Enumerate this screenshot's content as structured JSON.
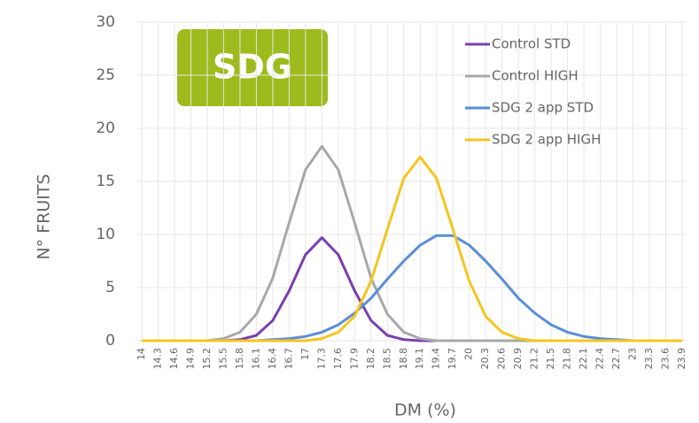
{
  "chart_data": {
    "type": "line",
    "badge": "SDG",
    "xlabel": "DM (%)",
    "ylabel": "N° FRUITS",
    "categories": [
      "14",
      "14.3",
      "14.6",
      "14.9",
      "15.2",
      "15.5",
      "15.8",
      "16.1",
      "16.4",
      "16.7",
      "17",
      "17.3",
      "17.6",
      "17.9",
      "18.2",
      "18.5",
      "18.8",
      "19.1",
      "19.4",
      "19.7",
      "20",
      "20.3",
      "20.6",
      "20.9",
      "21.2",
      "21.5",
      "21.8",
      "22.1",
      "22.4",
      "22.7",
      "23",
      "23.3",
      "23.6",
      "23.9"
    ],
    "series": [
      {
        "name": "Control STD",
        "color": "#7a3fb0",
        "values": [
          0,
          0,
          0,
          0,
          0,
          0,
          0.1,
          0.5,
          1.9,
          4.7,
          8.1,
          9.7,
          8.1,
          4.7,
          1.9,
          0.5,
          0.1,
          0,
          0,
          0,
          0,
          0,
          0,
          0,
          0,
          0,
          0,
          0,
          0,
          0,
          0,
          0,
          0,
          0
        ]
      },
      {
        "name": "Control HIGH",
        "color": "#a8a8a8",
        "values": [
          0,
          0,
          0,
          0,
          0,
          0.2,
          0.8,
          2.5,
          5.9,
          11.1,
          16.1,
          18.3,
          16.1,
          11.1,
          5.9,
          2.5,
          0.8,
          0.2,
          0,
          0,
          0,
          0,
          0,
          0,
          0,
          0,
          0,
          0,
          0,
          0,
          0,
          0,
          0,
          0
        ]
      },
      {
        "name": "SDG 2 app STD",
        "color": "#5b8ed6",
        "values": [
          0,
          0,
          0,
          0,
          0,
          0,
          0,
          0,
          0.1,
          0.2,
          0.4,
          0.8,
          1.5,
          2.6,
          4.0,
          5.8,
          7.5,
          9.0,
          9.9,
          9.9,
          9.0,
          7.5,
          5.8,
          4.0,
          2.6,
          1.5,
          0.8,
          0.4,
          0.2,
          0.1,
          0,
          0,
          0,
          0
        ]
      },
      {
        "name": "SDG 2 app HIGH",
        "color": "#f5c520",
        "values": [
          0,
          0,
          0,
          0,
          0,
          0,
          0,
          0,
          0,
          0,
          0,
          0.2,
          0.8,
          2.3,
          5.6,
          10.5,
          15.3,
          17.3,
          15.3,
          10.5,
          5.6,
          2.3,
          0.8,
          0.2,
          0,
          0,
          0,
          0,
          0,
          0,
          0,
          0,
          0,
          0
        ]
      }
    ],
    "ylim": [
      0,
      30
    ],
    "yticks": [
      0,
      5,
      10,
      15,
      20,
      25,
      30
    ],
    "grid": true,
    "legend": "top-right"
  }
}
